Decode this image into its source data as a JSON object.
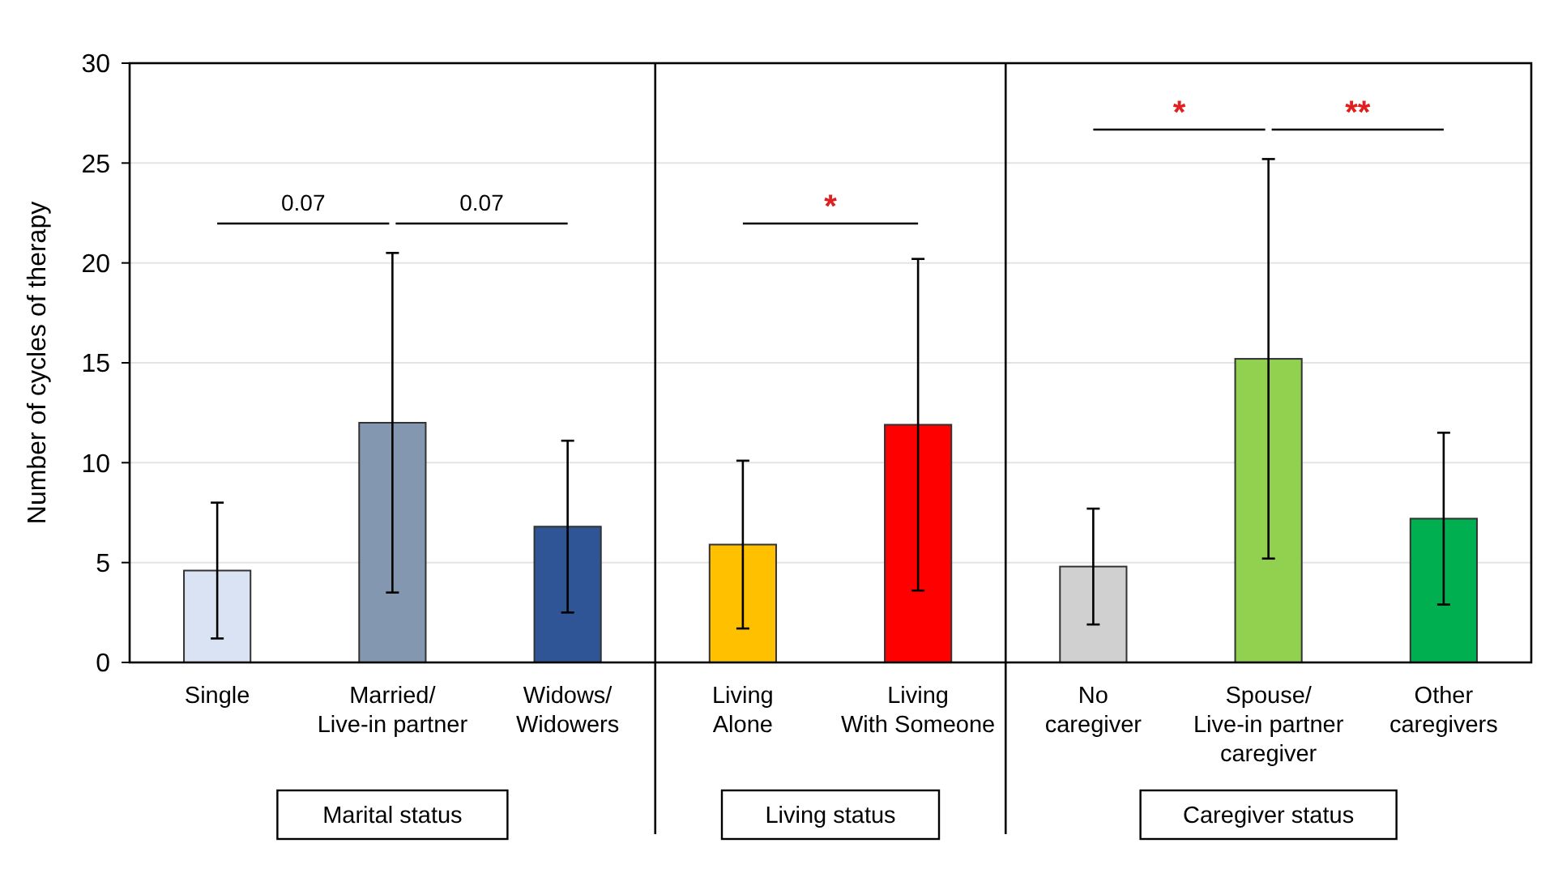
{
  "chart_data": {
    "type": "bar",
    "ylabel": "Number of cycles of therapy",
    "categories": [
      "Single",
      "Married/\nLive-in partner",
      "Widows/\nWidowers",
      "Living\nAlone",
      "Living\nWith Someone",
      "No\ncaregiver",
      "Spouse/\nLive-in partner\ncaregiver",
      "Other\ncaregivers"
    ],
    "values": [
      4.6,
      12.0,
      6.8,
      5.9,
      11.9,
      4.8,
      15.2,
      7.2
    ],
    "colors": [
      "#dae3f3",
      "#8497b0",
      "#2f5597",
      "#ffc000",
      "#ff0000",
      "#d0d0d0",
      "#92d050",
      "#00b050"
    ],
    "errors": [
      3.4,
      8.5,
      4.3,
      4.2,
      8.3,
      2.9,
      10.0,
      4.3
    ],
    "ylim": [
      0,
      30
    ],
    "yticks": [
      0,
      5,
      10,
      15,
      20,
      25,
      30
    ],
    "grid": "y",
    "annotations": [
      "0.07",
      "0.07",
      "*",
      "*",
      "**",
      "Marital status",
      "Living status",
      "Caregiver status"
    ]
  }
}
